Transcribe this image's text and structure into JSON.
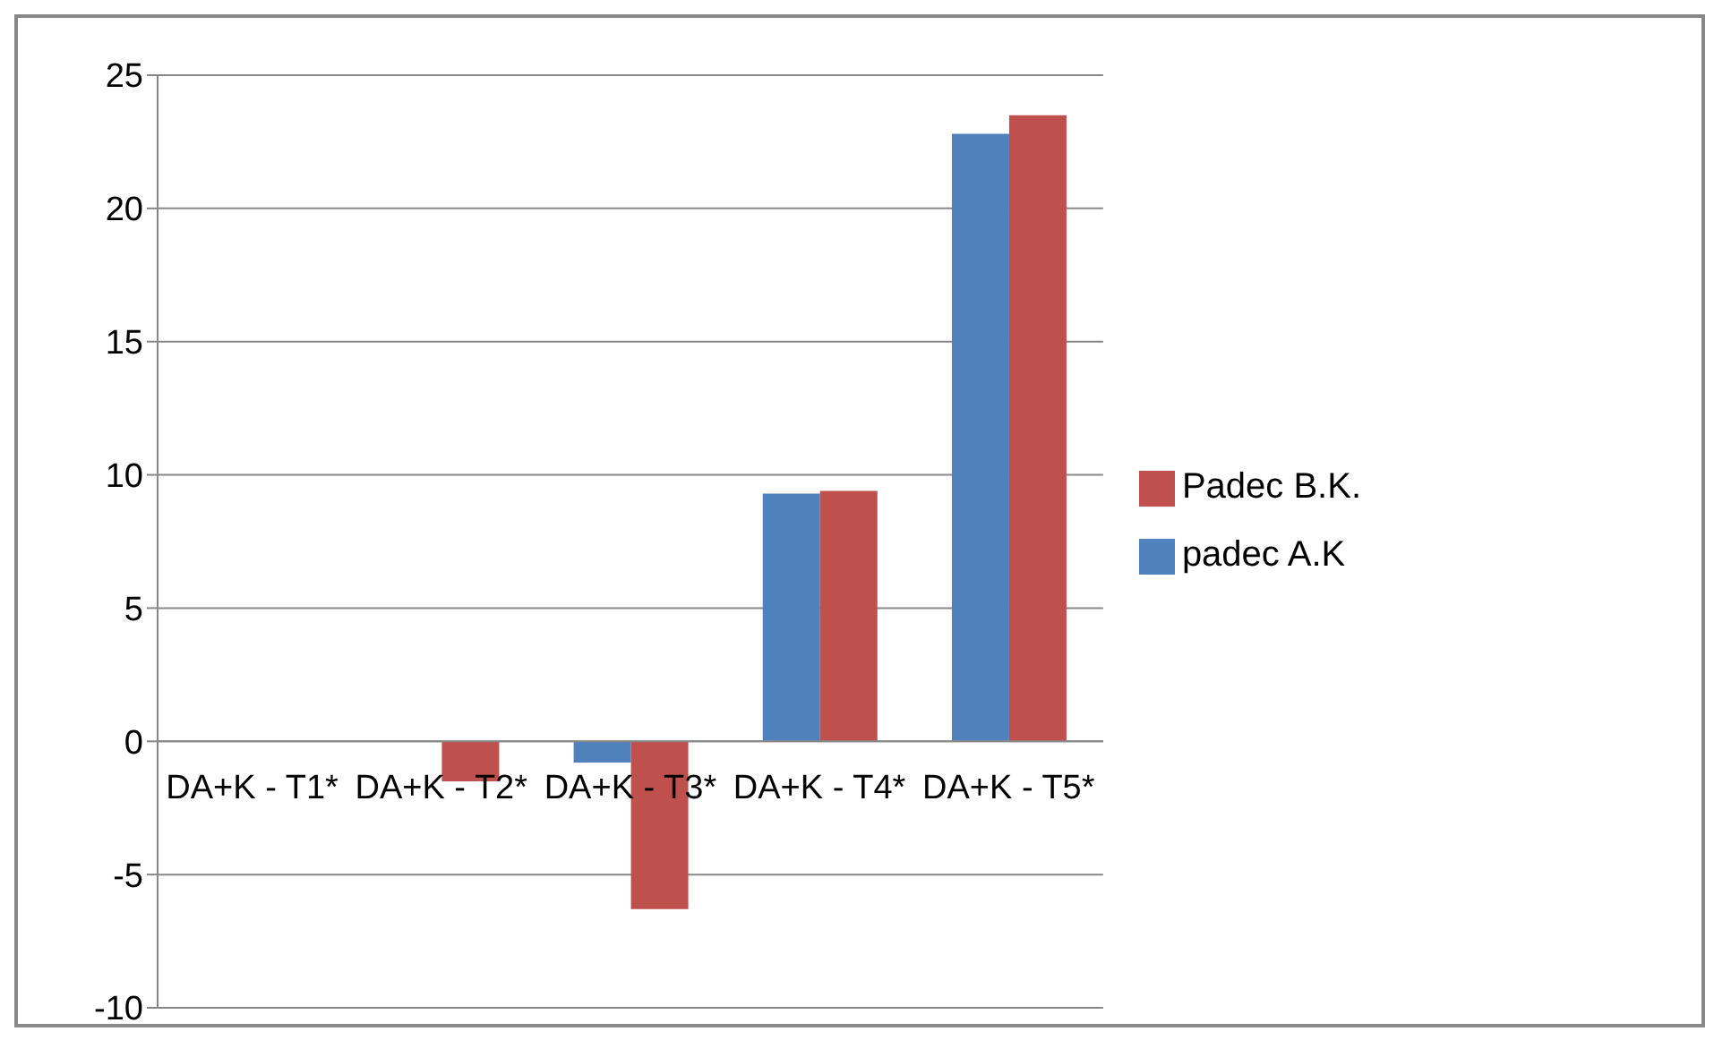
{
  "chart_data": {
    "type": "bar",
    "categories": [
      "DA+K - T1*",
      "DA+K - T2*",
      "DA+K - T3*",
      "DA+K - T4*",
      "DA+K - T5*"
    ],
    "series": [
      {
        "name": "padec A.K",
        "color": "#4f81bd",
        "values": [
          0,
          0,
          -0.8,
          9.3,
          22.8
        ]
      },
      {
        "name": "Padec B.K.",
        "color": "#c0504d",
        "values": [
          0,
          -1.5,
          -6.3,
          9.4,
          23.5
        ]
      }
    ],
    "ylim": [
      -10,
      25
    ],
    "yticks": [
      -10,
      -5,
      0,
      5,
      10,
      15,
      20,
      25
    ],
    "grid": "y",
    "legend": "right"
  }
}
